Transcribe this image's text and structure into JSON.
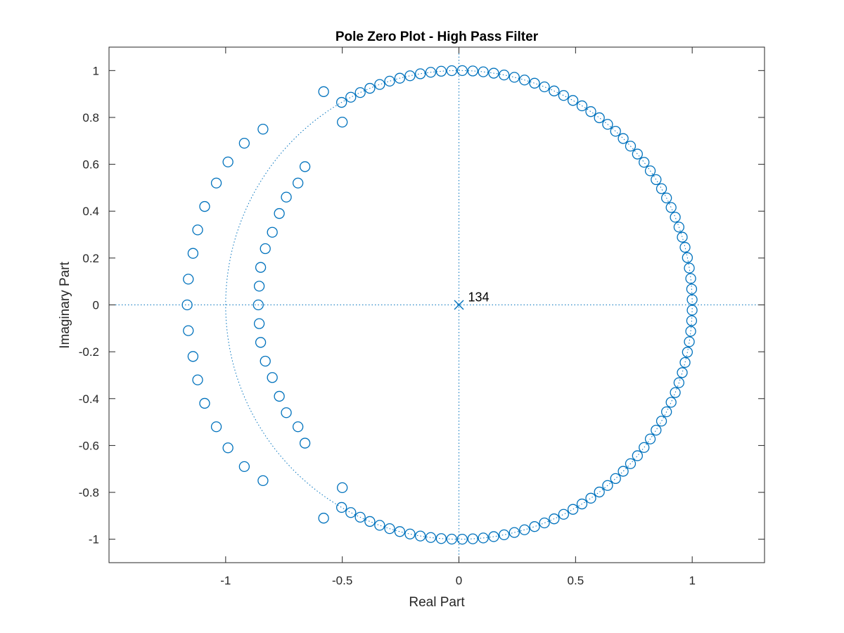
{
  "chart_data": {
    "type": "scatter",
    "title": "Pole Zero Plot - High Pass Filter",
    "xlabel": "Real Part",
    "ylabel": "Imaginary Part",
    "xlim": [
      -1.5,
      1.31
    ],
    "ylim": [
      -1.1,
      1.1
    ],
    "x_ticks": [
      -1,
      -0.5,
      0,
      0.5,
      1
    ],
    "x_tick_labels": [
      "-1",
      "-0.5",
      "0",
      "0.5",
      "1"
    ],
    "y_ticks": [
      1,
      0.8,
      0.6,
      0.4,
      0.2,
      0,
      -0.2,
      -0.4,
      -0.6,
      -0.8,
      -1
    ],
    "y_tick_labels": [
      "1",
      "0.8",
      "0.6",
      "0.4",
      "0.2",
      "0",
      "-0.2",
      "-0.4",
      "-0.6",
      "-0.8",
      "-1"
    ],
    "grid": false,
    "box": true,
    "marker_color": "#0072BD",
    "unit_circle": true,
    "reference_lines": {
      "x_axis_dotted": true,
      "y_axis_dotted": true
    },
    "zeros_unit_circle": {
      "marker": "circle",
      "count": 94,
      "theta_start_deg": -120.2,
      "theta_end_deg": 120.2,
      "radius": 1.0
    },
    "zeros_outer_arc": {
      "marker": "circle",
      "points": [
        [
          -0.58,
          0.91
        ],
        [
          -0.84,
          0.75
        ],
        [
          -0.92,
          0.69
        ],
        [
          -0.99,
          0.61
        ],
        [
          -1.04,
          0.52
        ],
        [
          -1.09,
          0.42
        ],
        [
          -1.12,
          0.32
        ],
        [
          -1.14,
          0.22
        ],
        [
          -1.16,
          0.11
        ],
        [
          -1.165,
          0.0
        ],
        [
          -1.16,
          -0.11
        ],
        [
          -1.14,
          -0.22
        ],
        [
          -1.12,
          -0.32
        ],
        [
          -1.09,
          -0.42
        ],
        [
          -1.04,
          -0.52
        ],
        [
          -0.99,
          -0.61
        ],
        [
          -0.92,
          -0.69
        ],
        [
          -0.84,
          -0.75
        ],
        [
          -0.58,
          -0.91
        ]
      ]
    },
    "zeros_inner_arc": {
      "marker": "circle",
      "points": [
        [
          -0.5,
          0.78
        ],
        [
          -0.66,
          0.59
        ],
        [
          -0.69,
          0.52
        ],
        [
          -0.74,
          0.46
        ],
        [
          -0.77,
          0.39
        ],
        [
          -0.8,
          0.31
        ],
        [
          -0.83,
          0.24
        ],
        [
          -0.85,
          0.16
        ],
        [
          -0.856,
          0.08
        ],
        [
          -0.86,
          0.0
        ],
        [
          -0.856,
          -0.08
        ],
        [
          -0.85,
          -0.16
        ],
        [
          -0.83,
          -0.24
        ],
        [
          -0.8,
          -0.31
        ],
        [
          -0.77,
          -0.39
        ],
        [
          -0.74,
          -0.46
        ],
        [
          -0.69,
          -0.52
        ],
        [
          -0.66,
          -0.59
        ],
        [
          -0.5,
          -0.78
        ]
      ]
    },
    "poles": {
      "marker": "x",
      "points": [
        [
          0,
          0
        ]
      ],
      "multiplicity_label": "134"
    }
  }
}
